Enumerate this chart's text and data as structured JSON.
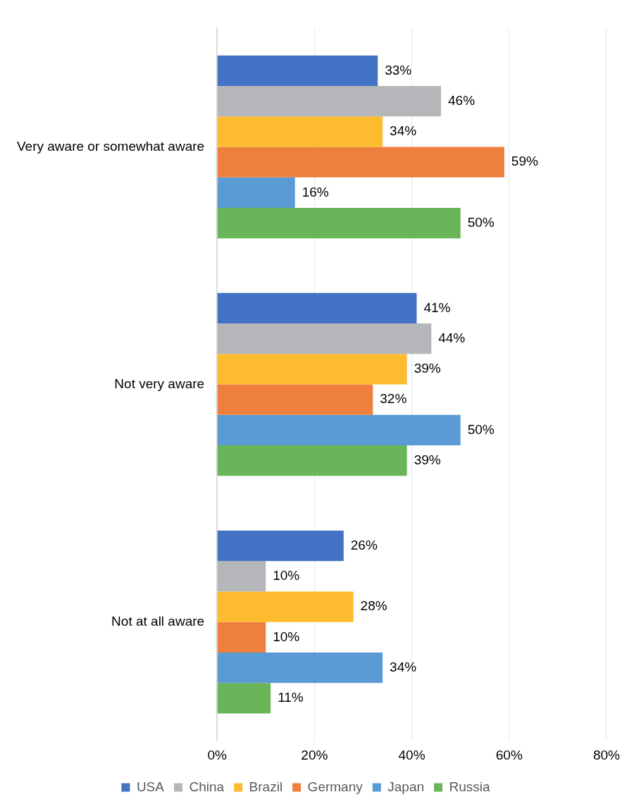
{
  "chart_data": {
    "type": "bar",
    "orientation": "horizontal",
    "categories": [
      "Very aware or somewhat aware",
      "Not very aware",
      "Not at all aware"
    ],
    "series": [
      {
        "name": "USA",
        "color": "#4472c4",
        "values": [
          33,
          41,
          26
        ],
        "value_labels": [
          "33%",
          "41%",
          "26%"
        ]
      },
      {
        "name": "China",
        "color": "#b4b6b9",
        "values": [
          46,
          44,
          10
        ],
        "value_labels": [
          "46%",
          "44%",
          "10%"
        ]
      },
      {
        "name": "Brazil",
        "color": "#fdbb2f",
        "values": [
          34,
          39,
          28
        ],
        "value_labels": [
          "34%",
          "39%",
          "28%"
        ]
      },
      {
        "name": "Germany",
        "color": "#ee7f3d",
        "values": [
          59,
          32,
          10
        ],
        "value_labels": [
          "59%",
          "32%",
          "10%"
        ]
      },
      {
        "name": "Japan",
        "color": "#5b9bd5",
        "values": [
          16,
          50,
          34
        ],
        "value_labels": [
          "16%",
          "50%",
          "34%"
        ]
      },
      {
        "name": "Russia",
        "color": "#6ab45a",
        "values": [
          50,
          39,
          11
        ],
        "value_labels": [
          "50%",
          "39%",
          "11%"
        ]
      }
    ],
    "xlim": [
      0,
      80
    ],
    "xticks": [
      {
        "value": 0,
        "label": "0%"
      },
      {
        "value": 20,
        "label": "20%"
      },
      {
        "value": 40,
        "label": "40%"
      },
      {
        "value": 60,
        "label": "60%"
      },
      {
        "value": 80,
        "label": "80%"
      }
    ],
    "grid": "x",
    "legend": "bottom"
  }
}
